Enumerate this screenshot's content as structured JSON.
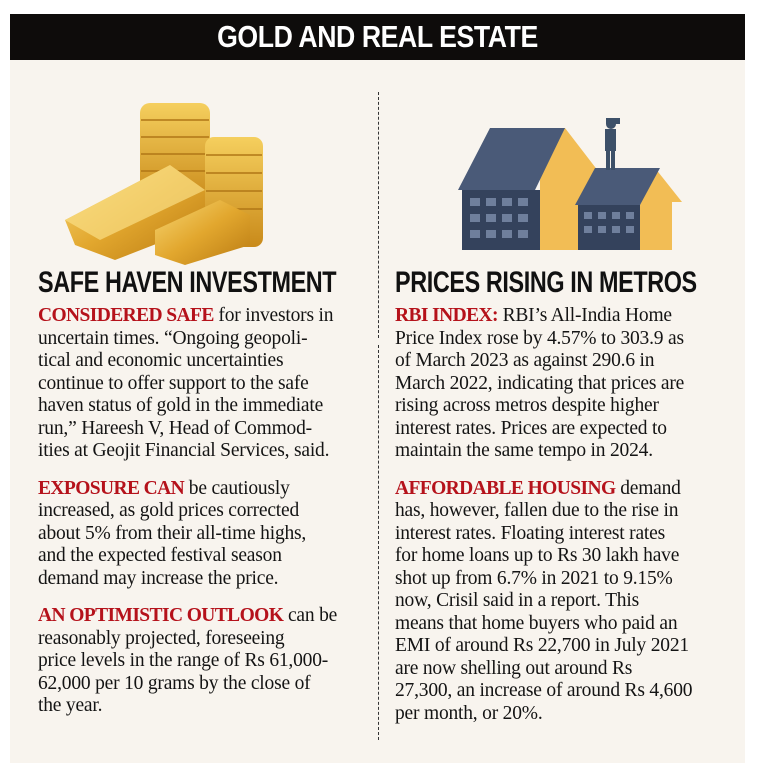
{
  "title": "GOLD AND REAL ESTATE",
  "colors": {
    "accent_red": "#b5121b",
    "banner": "#0e0c0b",
    "panel": "#f8f4ee",
    "gold": "#e8b53c",
    "building_blue": "#4a5a78"
  },
  "left": {
    "illustration": "gold-bars-and-coins",
    "heading": "SAFE HAVEN INVESTMENT",
    "paragraphs": [
      {
        "lead": "CONSIDERED SAFE",
        "lines": [
          " for investors in",
          "uncertain times. “Ongoing geopoli-",
          "tical and economic uncertainties",
          "continue to offer support to the safe",
          "haven status of gold in the immediate",
          "run,” Hareesh V, Head of Commod-",
          "ities at Geojit Financial Services, said."
        ]
      },
      {
        "lead": "EXPOSURE CAN",
        "lines": [
          " be cautiously",
          "increased, as gold prices corrected",
          "about 5% from their all-time highs,",
          "and the expected festival season",
          "demand may increase the price."
        ]
      },
      {
        "lead": "AN OPTIMISTIC OUTLOOK",
        "lines": [
          " can be",
          "reasonably projected, foreseeing",
          "price levels in the range of Rs 61,000-",
          "62,000 per 10 grams by the close of",
          "the year."
        ]
      }
    ]
  },
  "right": {
    "illustration": "buildings-with-rising-arrows",
    "heading": "PRICES RISING IN METROS",
    "paragraphs": [
      {
        "lead": "RBI INDEX:",
        "lines": [
          " RBI’s All-India Home",
          "Price Index rose by 4.57% to 303.9 as",
          "of March 2023 as against 290.6 in",
          "March 2022, indicating that prices are",
          "rising across metros despite higher",
          "interest rates. Prices are expected to",
          "maintain the same tempo in 2024."
        ]
      },
      {
        "lead": "AFFORDABLE HOUSING",
        "lines": [
          " demand",
          "has, however, fallen due to the rise in",
          "interest rates. Floating interest rates",
          "for home loans up to Rs 30 lakh have",
          "shot up from 6.7% in 2021 to 9.15%",
          "now, Crisil said in a report. This",
          "means that home buyers who paid an",
          "EMI of around Rs 22,700 in July 2021",
          "are now shelling out around Rs",
          "27,300, an increase of around Rs 4,600",
          "per month, or 20%."
        ]
      }
    ]
  }
}
